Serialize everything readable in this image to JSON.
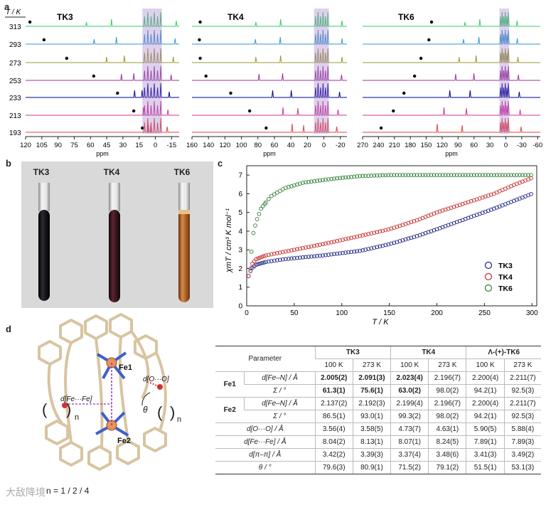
{
  "panels": {
    "a": "a",
    "b": "b",
    "c": "c",
    "d": "d"
  },
  "nmr": {
    "temp_header": "T / K",
    "temperatures": [
      "313",
      "293",
      "273",
      "253",
      "233",
      "213",
      "193"
    ],
    "trace_colors": [
      "#33cc66",
      "#3399cc",
      "#999933",
      "#993399",
      "#000099",
      "#cc3399",
      "#e64040"
    ],
    "xlabel": "ppm",
    "spectra": [
      {
        "name": "TK3",
        "ticks": [
          "120",
          "105",
          "90",
          "75",
          "60",
          "45",
          "30",
          "15",
          "0",
          "-15"
        ],
        "range": [
          120,
          -22
        ],
        "dots": [
          116,
          103,
          82,
          57,
          35,
          20,
          12
        ]
      },
      {
        "name": "TK4",
        "ticks": [
          "160",
          "140",
          "120",
          "100",
          "80",
          "60",
          "40",
          "20",
          "0",
          "-20"
        ],
        "range": [
          160,
          -28
        ],
        "dots": [
          150,
          151,
          150,
          143,
          113,
          90,
          70
        ]
      },
      {
        "name": "TK6",
        "ticks": [
          "270",
          "240",
          "210",
          "180",
          "150",
          "120",
          "90",
          "60",
          "30",
          "0",
          "-30",
          "-60"
        ],
        "range": [
          270,
          -65
        ],
        "dots": [
          140,
          145,
          160,
          172,
          192,
          212,
          235
        ]
      }
    ]
  },
  "tubes": [
    {
      "label": "TK3",
      "color": "#0c0c10"
    },
    {
      "label": "TK4",
      "color": "#2a1014"
    },
    {
      "label": "TK6",
      "color": "#b0642a"
    }
  ],
  "chart_data": {
    "type": "scatter",
    "xlabel": "T / K",
    "ylabel": "χmT / cm³ K mol⁻¹",
    "xlim": [
      0,
      305
    ],
    "ylim": [
      0,
      7.5
    ],
    "xticks": [
      0,
      50,
      100,
      150,
      200,
      250,
      300
    ],
    "yticks": [
      0,
      1,
      2,
      3,
      4,
      5,
      6,
      7
    ],
    "series": [
      {
        "name": "TK3",
        "color": "#1a237e",
        "anchors": [
          [
            2,
            1.6
          ],
          [
            5,
            2.0
          ],
          [
            10,
            2.2
          ],
          [
            20,
            2.35
          ],
          [
            40,
            2.5
          ],
          [
            80,
            2.7
          ],
          [
            120,
            2.95
          ],
          [
            150,
            3.3
          ],
          [
            180,
            3.75
          ],
          [
            200,
            4.1
          ],
          [
            230,
            4.65
          ],
          [
            260,
            5.2
          ],
          [
            280,
            5.6
          ],
          [
            300,
            6.0
          ]
        ]
      },
      {
        "name": "TK4",
        "color": "#c62828",
        "anchors": [
          [
            2,
            1.6
          ],
          [
            5,
            2.2
          ],
          [
            10,
            2.5
          ],
          [
            20,
            2.7
          ],
          [
            40,
            2.9
          ],
          [
            80,
            3.3
          ],
          [
            120,
            3.75
          ],
          [
            150,
            4.1
          ],
          [
            180,
            4.6
          ],
          [
            200,
            5.0
          ],
          [
            230,
            5.5
          ],
          [
            260,
            6.0
          ],
          [
            280,
            6.45
          ],
          [
            300,
            6.85
          ]
        ]
      },
      {
        "name": "TK6",
        "color": "#2e7d32",
        "anchors": [
          [
            5,
            2.9
          ],
          [
            7,
            3.9
          ],
          [
            10,
            4.5
          ],
          [
            15,
            5.2
          ],
          [
            25,
            5.85
          ],
          [
            40,
            6.3
          ],
          [
            60,
            6.6
          ],
          [
            90,
            6.8
          ],
          [
            120,
            6.95
          ],
          [
            150,
            7.0
          ],
          [
            200,
            7.0
          ],
          [
            250,
            7.0
          ],
          [
            300,
            7.0
          ]
        ]
      }
    ],
    "legend": [
      "TK3",
      "TK4",
      "TK6"
    ]
  },
  "structure": {
    "labels": {
      "fe1": "Fe1",
      "fe2": "Fe2",
      "d_o": "d[O···O]",
      "d_fe": "d[Fe···Fe]",
      "theta": "θ",
      "n_left": "n",
      "n_right": "n"
    },
    "caption": "n = 1 / 2 / 4",
    "watermark": "大敌降境"
  },
  "table": {
    "param_header": "Parameter",
    "compounds": [
      "TK3",
      "TK4",
      "Λ-(+)-TK6"
    ],
    "temps": [
      "100 K",
      "273 K",
      "100 K",
      "273 K",
      "100 K",
      "273 K"
    ],
    "fe1_label": "Fe1",
    "fe2_label": "Fe2",
    "dfen": "d[Fe–N] / Å",
    "sigma": "Σ / °",
    "rows": {
      "fe1_d": [
        "2.005(2)",
        "2.091(3)",
        "2.023(4)",
        "2.196(7)",
        "2.200(4)",
        "2.211(7)"
      ],
      "fe1_s": [
        "61.3(1)",
        "75.6(1)",
        "63.0(2)",
        "98.0(2)",
        "94.2(1)",
        "92.5(3)"
      ],
      "fe2_d": [
        "2.137(2)",
        "2.192(3)",
        "2.199(4)",
        "2.196(7)",
        "2.200(4)",
        "2.211(7)"
      ],
      "fe2_s": [
        "86.5(1)",
        "93.0(1)",
        "99.3(2)",
        "98.0(2)",
        "94.2(1)",
        "92.5(3)"
      ],
      "doo": {
        "label": "d[O···O] / Å",
        "values": [
          "3.56(4)",
          "3.58(5)",
          "4.73(7)",
          "4.63(1)",
          "5.90(5)",
          "5.88(4)"
        ]
      },
      "dfefe": {
        "label": "d[Fe···Fe] / Å",
        "values": [
          "8.04(2)",
          "8.13(1)",
          "8.07(1)",
          "8.24(5)",
          "7.89(1)",
          "7.89(3)"
        ]
      },
      "dpp": {
        "label": "d[π–π] / Å",
        "values": [
          "3.42(2)",
          "3.39(3)",
          "3.37(4)",
          "3.48(6)",
          "3.41(3)",
          "3.49(2)"
        ]
      },
      "theta": {
        "label": "θ / °",
        "values": [
          "79.6(3)",
          "80.9(1)",
          "71.5(2)",
          "79.1(2)",
          "51.5(1)",
          "53.1(3)"
        ]
      }
    }
  }
}
